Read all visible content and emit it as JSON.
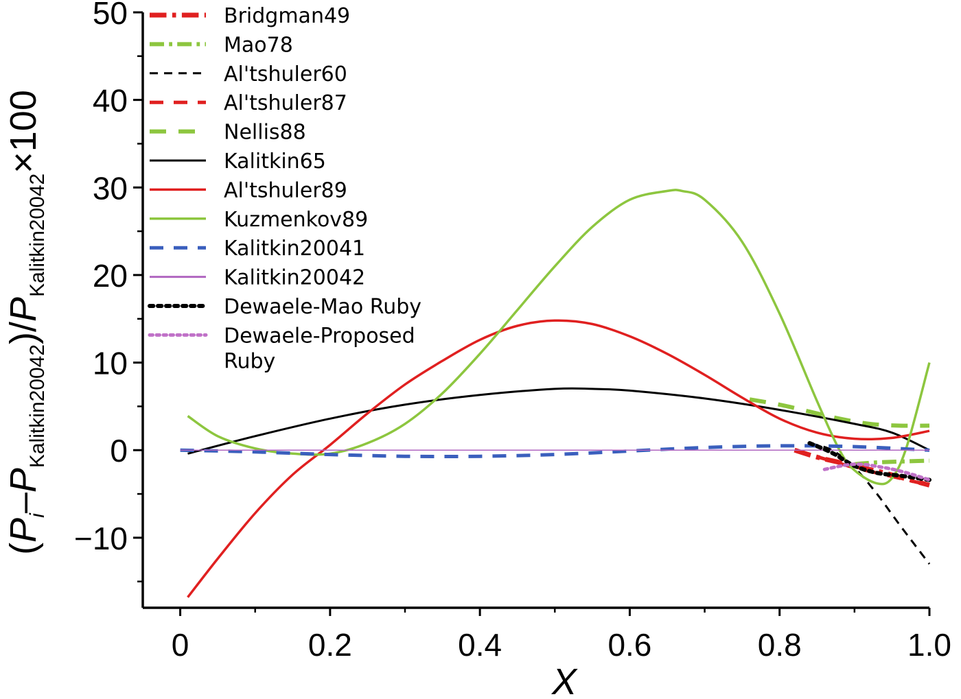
{
  "chart_data": {
    "type": "line",
    "xlabel": "X",
    "ylabel": {
      "open": "(",
      "p1": "P",
      "sub_i": "i",
      "dash": "–",
      "p2": "P",
      "sub_ref": "Kalitkin20042",
      "close": ")/",
      "p3": "P",
      "sub_ref2": "Kalitkin20042",
      "tail": "×100"
    },
    "xlim": [
      -0.05,
      1.0
    ],
    "ylim": [
      -18,
      50
    ],
    "xticks": [
      0,
      0.2,
      0.4,
      0.6,
      0.8,
      1.0
    ],
    "xtick_labels": [
      "0",
      "0.2",
      "0.4",
      "0.6",
      "0.8",
      "1.0"
    ],
    "yticks": [
      -10,
      0,
      10,
      20,
      30,
      40,
      50
    ],
    "ytick_labels": [
      "−10",
      "0",
      "10",
      "20",
      "30",
      "40",
      "50"
    ],
    "legend_position": "top-left",
    "series": [
      {
        "name": "Bridgman49",
        "color": "#e02020",
        "dash": "dashdot",
        "width": 7,
        "legend": "Bridgman49",
        "x": [
          0.82,
          0.85,
          0.88,
          0.91,
          0.94,
          0.97,
          1.0
        ],
        "y": [
          0,
          -0.8,
          -1.4,
          -2.0,
          -2.6,
          -3.3,
          -4.0
        ]
      },
      {
        "name": "Mao78",
        "color": "#8dc63f",
        "dash": "dashdot",
        "width": 6,
        "legend": "Mao78",
        "x": [
          0.9,
          0.93,
          0.96,
          1.0
        ],
        "y": [
          -1.6,
          -1.4,
          -1.3,
          -1.2
        ]
      },
      {
        "name": "Al'tshuler60",
        "color": "#000000",
        "dash": "dashed",
        "width": 3,
        "legend": "Al'tshuler60",
        "x": [
          0.84,
          0.87,
          0.9,
          0.93,
          0.96,
          1.0
        ],
        "y": [
          0.8,
          0.0,
          -2.0,
          -5.0,
          -8.5,
          -13.0
        ]
      },
      {
        "name": "Al'tshuler87",
        "color": "#e02020",
        "dash": "dashed",
        "width": 5,
        "legend": "Al'tshuler87",
        "x": [
          0.82,
          0.86,
          0.9,
          0.94,
          0.97,
          1.0
        ],
        "y": [
          0,
          -1.0,
          -2.0,
          -2.8,
          -3.4,
          -4.0
        ]
      },
      {
        "name": "Nellis88",
        "color": "#8dc63f",
        "dash": "dashed",
        "width": 6,
        "legend": "Nellis88",
        "x": [
          0.76,
          0.8,
          0.84,
          0.88,
          0.92,
          0.96,
          1.0
        ],
        "y": [
          5.8,
          5.2,
          4.4,
          3.6,
          3.0,
          2.8,
          2.8
        ]
      },
      {
        "name": "Kalitkin65",
        "color": "#000000",
        "dash": "solid",
        "width": 3,
        "legend": "Kalitkin65",
        "x": [
          0.01,
          0.1,
          0.2,
          0.3,
          0.4,
          0.5,
          0.55,
          0.6,
          0.7,
          0.8,
          0.9,
          0.95,
          1.0
        ],
        "y": [
          -0.4,
          1.6,
          3.6,
          5.2,
          6.3,
          7.0,
          7.0,
          6.8,
          5.9,
          4.6,
          3.0,
          2.0,
          0.0
        ]
      },
      {
        "name": "Al'tshuler89",
        "color": "#e02020",
        "dash": "solid",
        "width": 3.5,
        "legend": "Al'tshuler89",
        "x": [
          0.01,
          0.05,
          0.1,
          0.15,
          0.2,
          0.25,
          0.3,
          0.35,
          0.4,
          0.45,
          0.5,
          0.55,
          0.6,
          0.65,
          0.7,
          0.75,
          0.8,
          0.85,
          0.9,
          0.95,
          1.0
        ],
        "y": [
          -16.8,
          -12.4,
          -7.2,
          -2.8,
          0.6,
          4.2,
          7.5,
          10.2,
          12.6,
          14.2,
          14.8,
          14.4,
          13.0,
          11.0,
          8.6,
          6.0,
          3.6,
          2.0,
          1.3,
          1.4,
          2.2
        ]
      },
      {
        "name": "Kuzmenkov89",
        "color": "#8dc63f",
        "dash": "solid",
        "width": 3.5,
        "legend": "Kuzmenkov89",
        "x": [
          0.01,
          0.05,
          0.1,
          0.15,
          0.2,
          0.25,
          0.3,
          0.35,
          0.4,
          0.45,
          0.5,
          0.55,
          0.6,
          0.65,
          0.67,
          0.7,
          0.75,
          0.8,
          0.85,
          0.88,
          0.9,
          0.93,
          0.95,
          0.97,
          1.0
        ],
        "y": [
          3.9,
          1.6,
          0.2,
          -0.4,
          -0.4,
          0.8,
          3.0,
          6.5,
          11.0,
          16.0,
          21.0,
          25.5,
          28.6,
          29.6,
          29.6,
          28.6,
          23.8,
          15.6,
          5.6,
          0.0,
          -2.3,
          -3.8,
          -3.2,
          0.5,
          10.0
        ]
      },
      {
        "name": "Kalitkin20041",
        "color": "#3a5fbd",
        "dash": "dashed",
        "width": 5,
        "legend": "Kalitkin20041",
        "x": [
          0.0,
          0.1,
          0.2,
          0.3,
          0.4,
          0.5,
          0.6,
          0.7,
          0.8,
          0.9,
          1.0
        ],
        "y": [
          0.0,
          -0.2,
          -0.5,
          -0.7,
          -0.7,
          -0.5,
          -0.1,
          0.3,
          0.5,
          0.4,
          0.0
        ]
      },
      {
        "name": "Kalitkin20042",
        "color": "#b066c0",
        "dash": "solid",
        "width": 1.5,
        "legend": "Kalitkin20042",
        "x": [
          0.0,
          1.0
        ],
        "y": [
          0.0,
          0.0
        ]
      },
      {
        "name": "Dewaele-Mao Ruby",
        "color": "#000000",
        "dash": "dotted",
        "width": 6,
        "legend": "Dewaele-Mao Ruby",
        "x": [
          0.84,
          0.87,
          0.9,
          0.93,
          0.96,
          1.0
        ],
        "y": [
          0.8,
          -0.3,
          -1.8,
          -2.6,
          -2.9,
          -3.4
        ]
      },
      {
        "name": "Dewaele-Proposed Ruby",
        "color": "#c071c8",
        "dash": "dotted",
        "width": 5,
        "legend": "Dewaele-Proposed",
        "legend2": "Ruby",
        "x": [
          0.86,
          0.9,
          0.94,
          0.97,
          1.0
        ],
        "y": [
          -2.2,
          -1.6,
          -2.0,
          -2.6,
          -3.4
        ]
      }
    ]
  }
}
